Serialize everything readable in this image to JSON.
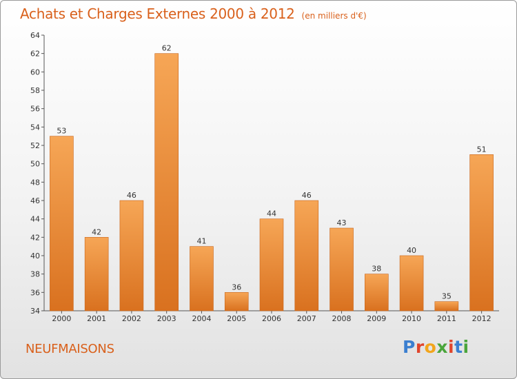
{
  "title": {
    "main": "Achats et Charges Externes 2000 à 2012",
    "unit": "(en milliers d'€)"
  },
  "commune": "NEUFMAISONS",
  "logo": {
    "text": "Proxiti",
    "letters": [
      {
        "char": "P",
        "color": "#3b7fd0"
      },
      {
        "char": "r",
        "color": "#e0452c"
      },
      {
        "char": "o",
        "color": "#f2a51c"
      },
      {
        "char": "x",
        "color": "#4aa53b"
      },
      {
        "char": "i",
        "color": "#e0452c"
      },
      {
        "char": "t",
        "color": "#3b7fd0"
      },
      {
        "char": "i",
        "color": "#4aa53b"
      }
    ]
  },
  "chart_data": {
    "type": "bar",
    "title": "Achats et Charges Externes 2000 à 2012",
    "subtitle": "(en milliers d'€)",
    "categories": [
      "2000",
      "2001",
      "2002",
      "2003",
      "2004",
      "2005",
      "2006",
      "2007",
      "2008",
      "2009",
      "2010",
      "2011",
      "2012"
    ],
    "values": [
      53,
      42,
      46,
      62,
      41,
      36,
      44,
      46,
      43,
      38,
      40,
      35,
      51
    ],
    "ylim": [
      34,
      64
    ],
    "yticks": [
      34,
      36,
      38,
      40,
      42,
      44,
      46,
      48,
      50,
      52,
      54,
      56,
      58,
      60,
      62,
      64
    ],
    "grid": false,
    "data_labels": true,
    "colors": {
      "bar_top": "#f6a656",
      "bar_bottom": "#d9711f",
      "bar_edge": "#c8641a"
    }
  }
}
